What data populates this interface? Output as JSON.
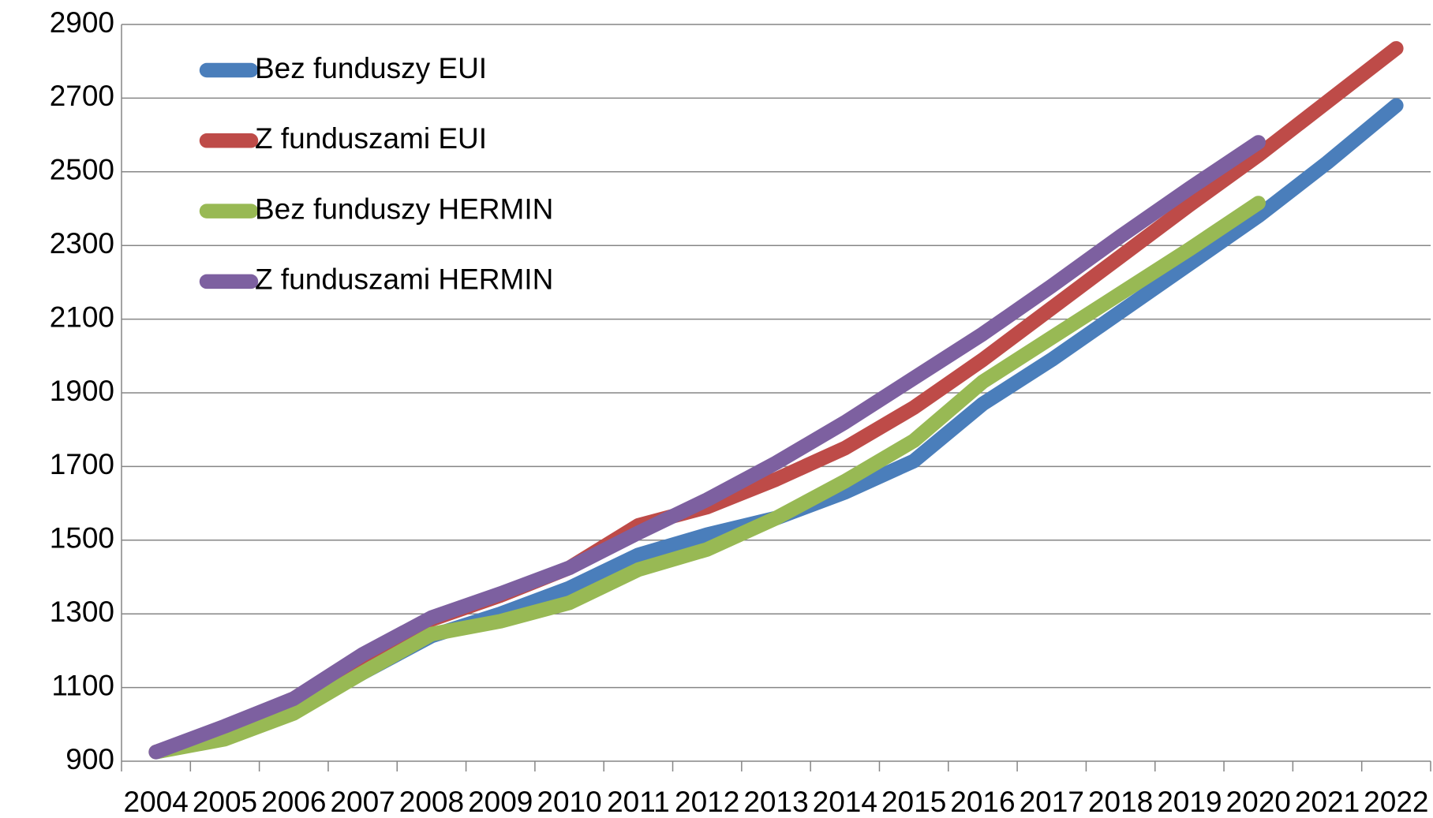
{
  "chart_data": {
    "type": "line",
    "categories": [
      "2004",
      "2005",
      "2006",
      "2007",
      "2008",
      "2009",
      "2010",
      "2011",
      "2012",
      "2013",
      "2014",
      "2015",
      "2016",
      "2017",
      "2018",
      "2019",
      "2020",
      "2021",
      "2022"
    ],
    "series": [
      {
        "name": "Bez funduszy EUI",
        "color": "#4a7ebb",
        "values": [
          925,
          965,
          1035,
          1140,
          1240,
          1300,
          1370,
          1460,
          1515,
          1560,
          1630,
          1715,
          1870,
          1990,
          2120,
          2250,
          2380,
          2525,
          2680
        ]
      },
      {
        "name": "Z funduszami EUI",
        "color": "#be4b48",
        "values": [
          925,
          990,
          1070,
          1185,
          1285,
          1350,
          1425,
          1540,
          1590,
          1665,
          1750,
          1860,
          1990,
          2130,
          2270,
          2410,
          2545,
          2690,
          2835
        ]
      },
      {
        "name": "Bez funduszy HERMIN",
        "color": "#98b954",
        "values": [
          925,
          960,
          1030,
          1140,
          1245,
          1280,
          1330,
          1420,
          1475,
          1560,
          1660,
          1770,
          1930,
          2050,
          2170,
          2290,
          2415,
          null,
          null
        ]
      },
      {
        "name": "Z funduszami HERMIN",
        "color": "#7d60a0",
        "values": [
          925,
          995,
          1070,
          1190,
          1290,
          1355,
          1425,
          1520,
          1610,
          1710,
          1820,
          1940,
          2060,
          2190,
          2325,
          2455,
          2580,
          null,
          null
        ]
      }
    ],
    "ylim": [
      900,
      2900
    ],
    "yticks": [
      900,
      1100,
      1300,
      1500,
      1700,
      1900,
      2100,
      2300,
      2500,
      2700,
      2900
    ],
    "grid": true,
    "legend": "top-left"
  }
}
